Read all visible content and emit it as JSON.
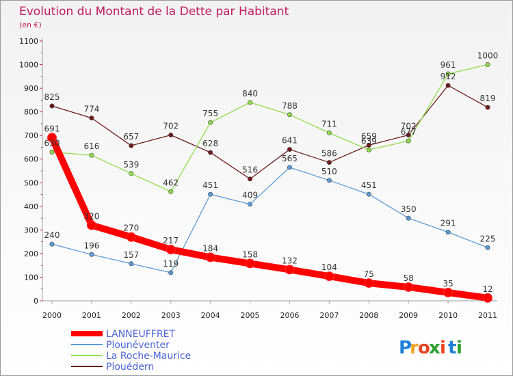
{
  "title": "Evolution du Montant de la Dette par Habitant",
  "subtitle": "(en €)",
  "brand": {
    "letters": [
      "P",
      "r",
      "o",
      "x",
      "i",
      "t",
      "i"
    ],
    "colors": [
      "#1e7fd6",
      "#f0a020",
      "#e8441e",
      "#2ca02c",
      "#e8441e",
      "#1e7fd6",
      "#2ca02c"
    ]
  },
  "chart_data": {
    "type": "line",
    "title": "Evolution du Montant de la Dette par Habitant",
    "subtitle": "(en €)",
    "xlabel": "",
    "ylabel": "",
    "x": [
      "2000",
      "2001",
      "2002",
      "2003",
      "2004",
      "2005",
      "2006",
      "2007",
      "2008",
      "2009",
      "2010",
      "2011"
    ],
    "ylim": [
      0,
      1100
    ],
    "yticks": [
      0,
      100,
      200,
      300,
      400,
      500,
      600,
      700,
      800,
      900,
      1000,
      1100
    ],
    "grid": false,
    "legend_position": "bottom-left",
    "series": [
      {
        "name": "LANNEUFFRET",
        "color": "#ff0000",
        "values": [
          691,
          320,
          270,
          217,
          184,
          158,
          132,
          104,
          75,
          58,
          35,
          12
        ]
      },
      {
        "name": "Plounéventer",
        "color": "#5b9bd5",
        "values": [
          240,
          196,
          157,
          119,
          451,
          409,
          565,
          510,
          451,
          350,
          291,
          225
        ]
      },
      {
        "name": "La Roche-Maurice",
        "color": "#8fdb4a",
        "values": [
          630,
          616,
          539,
          462,
          755,
          840,
          788,
          711,
          639,
          677,
          961,
          1000
        ]
      },
      {
        "name": "Plouédern",
        "color": "#6e1a1a",
        "values": [
          825,
          774,
          657,
          702,
          628,
          516,
          641,
          586,
          659,
          702,
          912,
          819
        ]
      }
    ]
  }
}
